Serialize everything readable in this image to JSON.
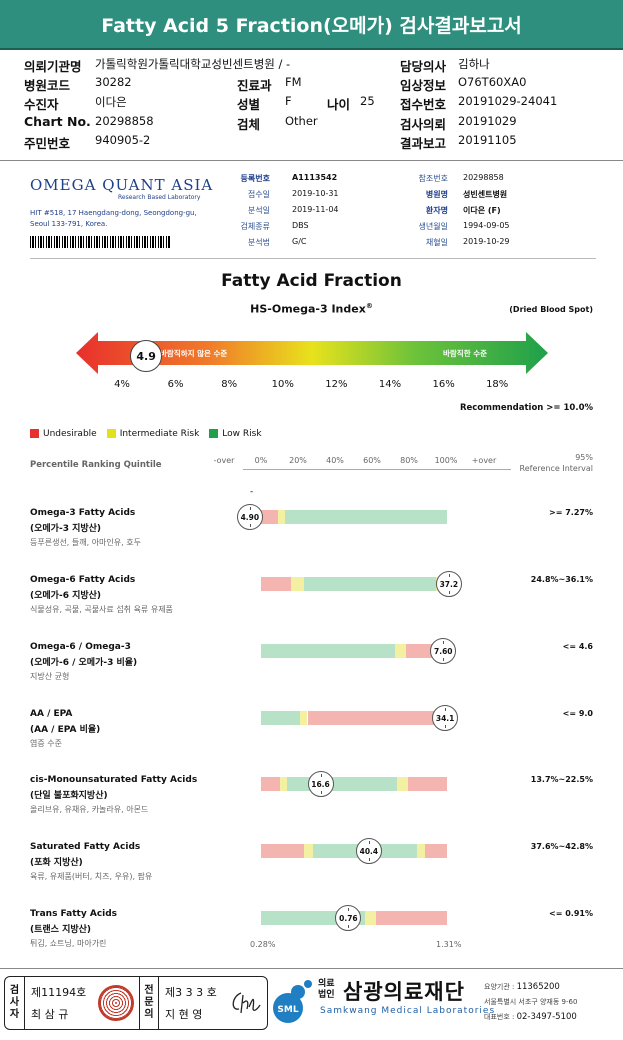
{
  "report": {
    "title": "Fatty Acid 5 Fraction(오메가) 검사결과보고서"
  },
  "patient_info": {
    "org_label": "의뢰기관명",
    "org_value": "가톨릭학원가톨릭대학교성빈센트병원 / -",
    "hosp_code_label": "병원코드",
    "hosp_code_value": "30282",
    "dept_label": "진료과",
    "dept_value": "FM",
    "name_label": "수진자",
    "name_value": "이다은",
    "sex_label": "성별",
    "sex_value": "F",
    "age_label": "나이",
    "age_value": "25",
    "chart_label": "Chart No.",
    "chart_value": "20298858",
    "specimen_label": "검체",
    "specimen_value": "Other",
    "ssn_label": "주민번호",
    "ssn_value": "940905-2",
    "doctor_label": "담당의사",
    "doctor_value": "김하나",
    "clinical_label": "임상정보",
    "clinical_value": "O76T60XA0",
    "receipt_label": "접수번호",
    "receipt_value": "20191029-24041",
    "request_label": "검사의뢰",
    "request_value": "20191029",
    "result_label": "결과보고",
    "result_value": "20191105"
  },
  "lab": {
    "logo": "OMEGA QUANT ASIA",
    "logo_sub": "Research Based Laboratory",
    "address_line1": "HIT #518, 17 Haengdang-dong, Seongdong-gu,",
    "address_line2": "Seoul 133-791, Korea.",
    "reg_label": "등록번호",
    "reg_value": "A1113542",
    "recv_label": "접수일",
    "recv_value": "2019-10-31",
    "anal_label": "분석일",
    "anal_value": "2019-11-04",
    "spec_label": "검체종류",
    "spec_value": "DBS",
    "method_label": "분석법",
    "method_value": "G/C",
    "ref_no_label": "참조번호",
    "ref_no_value": "20298858",
    "hosp_label": "병원명",
    "hosp_value": "성빈센트병원",
    "patient_label": "환자명",
    "patient_value": "이다은 (F)",
    "dob_label": "생년월일",
    "dob_value": "1994-09-05",
    "collect_label": "채혈일",
    "collect_value": "2019-10-29"
  },
  "index": {
    "heading": "Fatty Acid Fraction",
    "subheading": "HS-Omega-3 Index",
    "subheading_mark": "®",
    "dbs_note": "(Dried Blood Spot)",
    "bad_label": "바람직하지 않은 수준",
    "good_label": "바람직한 수준",
    "value": 4.9,
    "value_label": "4.9",
    "ticks": [
      "4%",
      "6%",
      "8%",
      "10%",
      "12%",
      "14%",
      "16%",
      "18%"
    ],
    "recommendation": "Recommendation  >= 10.0%"
  },
  "legend": {
    "undesirable": "Undesirable",
    "intermediate": "Intermediate Risk",
    "low": "Low Risk",
    "colors": {
      "red": "#e8302c",
      "yellow": "#e2e21c",
      "green": "#1fa04b",
      "bar_red": "#f4b4b0",
      "bar_yellow": "#f4f0a2",
      "bar_green": "#b7e2c8"
    }
  },
  "percentile": {
    "heading": "Percentile Ranking Quintile",
    "scale": [
      "-over",
      "0%",
      "20%",
      "40%",
      "60%",
      "80%",
      "100%",
      "+over"
    ],
    "ref_heading_1": "95%",
    "ref_heading_2": "Reference Interval",
    "dash": "-"
  },
  "rows": [
    {
      "en": "Omega-3 Fatty Acids",
      "ko": "(오메가-3 지방산)",
      "desc": "등푸른생선, 들깨, 아마인유, 호두",
      "ref": ">= 7.27%",
      "marker": "4.90",
      "pct": -6,
      "segments": [
        {
          "c": "red",
          "f": 0.0,
          "t": 0.09
        },
        {
          "c": "yellow",
          "f": 0.09,
          "t": 0.13
        },
        {
          "c": "green",
          "f": 0.13,
          "t": 1.0
        }
      ]
    },
    {
      "en": "Omega-6 Fatty Acids",
      "ko": "(오메가-6 지방산)",
      "desc": "식물성유, 곡물, 곡물사료 섭취 육류 유제품",
      "ref": "24.8%~36.1%",
      "marker": "37.2",
      "pct": 101,
      "segments": [
        {
          "c": "red",
          "f": 0.0,
          "t": 0.16
        },
        {
          "c": "yellow",
          "f": 0.16,
          "t": 0.23
        },
        {
          "c": "green",
          "f": 0.23,
          "t": 0.94
        },
        {
          "c": "yellow",
          "f": 0.94,
          "t": 1.0
        }
      ]
    },
    {
      "en": "Omega-6 / Omega-3",
      "ko": "(오메가-6 / 오메가-3 비율)",
      "desc": "지방산 균형",
      "ref": "<= 4.6",
      "marker": "7.60",
      "pct": 98,
      "segments": [
        {
          "c": "green",
          "f": 0.0,
          "t": 0.72
        },
        {
          "c": "yellow",
          "f": 0.72,
          "t": 0.78
        },
        {
          "c": "red",
          "f": 0.78,
          "t": 1.0
        }
      ]
    },
    {
      "en": "AA / EPA",
      "ko": "(AA / EPA 비율)",
      "desc": "염증 수준",
      "ref": "<= 9.0",
      "marker": "34.1",
      "pct": 99,
      "segments": [
        {
          "c": "green",
          "f": 0.0,
          "t": 0.21
        },
        {
          "c": "yellow",
          "f": 0.21,
          "t": 0.25
        },
        {
          "c": "red",
          "f": 0.25,
          "t": 1.0
        }
      ]
    },
    {
      "en": "cis-Monounsaturated Fatty Acids",
      "ko": "(단일 불포화지방산)",
      "desc": "올리브유, 유채유, 카놀라유, 아몬드",
      "ref": "13.7%~22.5%",
      "marker": "16.6",
      "pct": 32,
      "segments": [
        {
          "c": "red",
          "f": 0.0,
          "t": 0.1
        },
        {
          "c": "yellow",
          "f": 0.1,
          "t": 0.14
        },
        {
          "c": "green",
          "f": 0.14,
          "t": 0.73
        },
        {
          "c": "yellow",
          "f": 0.73,
          "t": 0.79
        },
        {
          "c": "red",
          "f": 0.79,
          "t": 1.0
        }
      ]
    },
    {
      "en": "Saturated Fatty Acids",
      "ko": "(포화 지방산)",
      "desc": "육류, 유제품(버터, 치즈, 우유), 팜유",
      "ref": "37.6%~42.8%",
      "marker": "40.4",
      "pct": 58,
      "segments": [
        {
          "c": "red",
          "f": 0.0,
          "t": 0.23
        },
        {
          "c": "yellow",
          "f": 0.23,
          "t": 0.28
        },
        {
          "c": "green",
          "f": 0.28,
          "t": 0.84
        },
        {
          "c": "yellow",
          "f": 0.84,
          "t": 0.88
        },
        {
          "c": "red",
          "f": 0.88,
          "t": 1.0
        }
      ]
    },
    {
      "en": "Trans Fatty Acids",
      "ko": "(트랜스 지방산)",
      "desc": "튀김, 쇼트닝, 마아가린",
      "ref": "<= 0.91%",
      "marker": "0.76",
      "pct": 47,
      "segments": [
        {
          "c": "green",
          "f": 0.0,
          "t": 0.56
        },
        {
          "c": "yellow",
          "f": 0.56,
          "t": 0.62
        },
        {
          "c": "red",
          "f": 0.62,
          "t": 1.0
        }
      ]
    }
  ],
  "trans_range": {
    "min": "0.28%",
    "max": "1.31%"
  },
  "footer": {
    "tester_label": [
      "검",
      "사",
      "자"
    ],
    "tester_no": "제11194호",
    "tester_name": "최 삼 규",
    "specialist_label": [
      "전",
      "문",
      "의"
    ],
    "specialist_no": "제3 3 3 호",
    "specialist_name": "지 현 영",
    "org_prefix": [
      "의료",
      "법인"
    ],
    "org_name": "삼광의료재단",
    "org_en": "Samkwang Medical Laboratories",
    "logo_text": "SML",
    "contact_code_label": "요양기관 : ",
    "contact_code": "11365200",
    "contact_addr": "서울특별시 서초구 양재동 9-60",
    "contact_tel_label": "대표번호 : ",
    "contact_tel": "02-3497-5100"
  }
}
